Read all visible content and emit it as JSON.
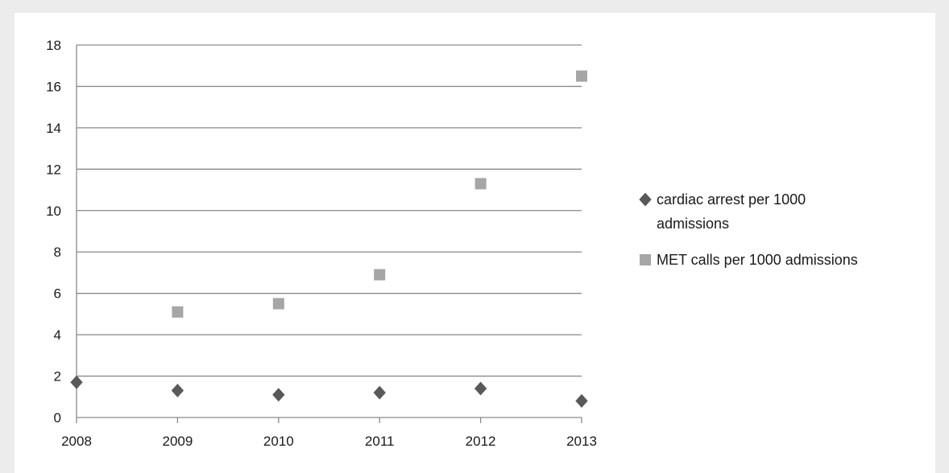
{
  "chart_data": {
    "type": "scatter",
    "x": [
      2008,
      2009,
      2010,
      2011,
      2012,
      2013
    ],
    "ylim": [
      0,
      18
    ],
    "yticks": [
      0,
      2,
      4,
      6,
      8,
      10,
      12,
      14,
      16,
      18
    ],
    "xticks": [
      "2008",
      "2009",
      "2010",
      "2011",
      "2012",
      "2013"
    ],
    "grid": true,
    "legend_position": "right",
    "series": [
      {
        "name": "cardiac arrest per 1000 admissions",
        "legend_lines": [
          "cardiac arrest per 1000",
          "admissions"
        ],
        "marker": "diamond",
        "color": "#595959",
        "points": [
          {
            "x": 2008,
            "y": 1.7
          },
          {
            "x": 2009,
            "y": 1.3
          },
          {
            "x": 2010,
            "y": 1.1
          },
          {
            "x": 2011,
            "y": 1.2
          },
          {
            "x": 2012,
            "y": 1.4
          },
          {
            "x": 2013,
            "y": 0.8
          }
        ]
      },
      {
        "name": "MET calls per 1000 admissions",
        "legend_lines": [
          "MET calls per 1000 admissions"
        ],
        "marker": "square",
        "color": "#a6a6a6",
        "points": [
          {
            "x": 2009,
            "y": 5.1
          },
          {
            "x": 2010,
            "y": 5.5
          },
          {
            "x": 2011,
            "y": 6.9
          },
          {
            "x": 2012,
            "y": 11.3
          },
          {
            "x": 2013,
            "y": 16.5
          }
        ]
      }
    ]
  }
}
